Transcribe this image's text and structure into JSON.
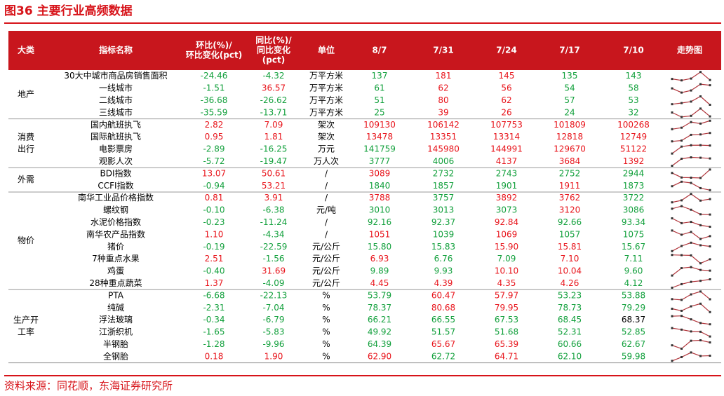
{
  "header": {
    "title": "图36  主要行业高频数据"
  },
  "table": {
    "columns": [
      [
        "大类"
      ],
      [
        "指标名称"
      ],
      [
        "环比(%)/",
        "环比变化(pct)"
      ],
      [
        "同比(%)/",
        "同比变化",
        "(pct)"
      ],
      [
        "单位"
      ],
      [
        "8/7"
      ],
      [
        "7/31"
      ],
      [
        "7/24"
      ],
      [
        "7/17"
      ],
      [
        "7/10"
      ],
      [
        "走势图"
      ]
    ],
    "groups": [
      {
        "label": [
          "地产"
        ],
        "rows": [
          {
            "cells": [
              "30大中城市商品房销售面积",
              "-24.46",
              "-4.32",
              "万平方米",
              "137",
              "181",
              "145",
              "135",
              "143"
            ],
            "colors": [
              "#000",
              "#12a03c",
              "#12a03c",
              "#000",
              "#12a03c",
              "#e8141b",
              "#e8141b",
              "#12a03c",
              "#12a03c"
            ]
          },
          {
            "cells": [
              "一线城市",
              "-1.51",
              "36.57",
              "万平方米",
              "61",
              "62",
              "56",
              "54",
              "58"
            ],
            "colors": [
              "#000",
              "#12a03c",
              "#e8141b",
              "#000",
              "#12a03c",
              "#e8141b",
              "#e8141b",
              "#12a03c",
              "#12a03c"
            ]
          },
          {
            "cells": [
              "二线城市",
              "-36.68",
              "-26.62",
              "万平方米",
              "51",
              "80",
              "62",
              "57",
              "53"
            ],
            "colors": [
              "#000",
              "#12a03c",
              "#12a03c",
              "#000",
              "#12a03c",
              "#e8141b",
              "#e8141b",
              "#12a03c",
              "#12a03c"
            ]
          },
          {
            "cells": [
              "三线城市",
              "-35.59",
              "-13.71",
              "万平方米",
              "25",
              "39",
              "26",
              "24",
              "32"
            ],
            "colors": [
              "#000",
              "#12a03c",
              "#12a03c",
              "#000",
              "#12a03c",
              "#e8141b",
              "#e8141b",
              "#12a03c",
              "#12a03c"
            ]
          }
        ]
      },
      {
        "label": [
          "消费",
          "出行"
        ],
        "rows": [
          {
            "cells": [
              "国内航班执飞",
              "2.82",
              "7.09",
              "架次",
              "109130",
              "106142",
              "107753",
              "101809",
              "100268"
            ],
            "colors": [
              "#000",
              "#e8141b",
              "#e8141b",
              "#000",
              "#e8141b",
              "#e8141b",
              "#e8141b",
              "#e8141b",
              "#e8141b"
            ]
          },
          {
            "cells": [
              "国际航班执飞",
              "0.95",
              "1.81",
              "架次",
              "13478",
              "13351",
              "13314",
              "12818",
              "12749"
            ],
            "colors": [
              "#000",
              "#e8141b",
              "#e8141b",
              "#000",
              "#e8141b",
              "#e8141b",
              "#e8141b",
              "#e8141b",
              "#e8141b"
            ]
          },
          {
            "cells": [
              "电影票房",
              "-2.89",
              "-16.25",
              "万元",
              "141759",
              "145980",
              "144991",
              "129670",
              "51122"
            ],
            "colors": [
              "#000",
              "#12a03c",
              "#12a03c",
              "#000",
              "#12a03c",
              "#e8141b",
              "#e8141b",
              "#e8141b",
              "#e8141b"
            ]
          },
          {
            "cells": [
              "观影人次",
              "-5.72",
              "-19.47",
              "万人次",
              "3777",
              "4006",
              "4137",
              "3684",
              "1392"
            ],
            "colors": [
              "#000",
              "#12a03c",
              "#12a03c",
              "#000",
              "#12a03c",
              "#12a03c",
              "#e8141b",
              "#e8141b",
              "#e8141b"
            ]
          }
        ]
      },
      {
        "label": [
          "外需"
        ],
        "rows": [
          {
            "cells": [
              "BDI指数",
              "13.07",
              "50.61",
              "/",
              "3089",
              "2732",
              "2743",
              "2752",
              "2944"
            ],
            "colors": [
              "#000",
              "#e8141b",
              "#e8141b",
              "#000",
              "#e8141b",
              "#12a03c",
              "#12a03c",
              "#12a03c",
              "#12a03c"
            ]
          },
          {
            "cells": [
              "CCFI指数",
              "-0.94",
              "53.21",
              "/",
              "1840",
              "1857",
              "1901",
              "1911",
              "1873"
            ],
            "colors": [
              "#000",
              "#12a03c",
              "#e8141b",
              "#000",
              "#12a03c",
              "#12a03c",
              "#12a03c",
              "#e8141b",
              "#12a03c"
            ]
          }
        ]
      },
      {
        "label": [
          "物价"
        ],
        "rows": [
          {
            "cells": [
              "南华工业品价格指数",
              "0.81",
              "3.91",
              "/",
              "3788",
              "3757",
              "3892",
              "3762",
              "3722"
            ],
            "colors": [
              "#000",
              "#e8141b",
              "#e8141b",
              "#000",
              "#e8141b",
              "#12a03c",
              "#e8141b",
              "#e8141b",
              "#12a03c"
            ]
          },
          {
            "cells": [
              "螺纹钢",
              "-0.10",
              "-6.38",
              "元/吨",
              "3010",
              "3013",
              "3073",
              "3120",
              "3086"
            ],
            "colors": [
              "#000",
              "#12a03c",
              "#12a03c",
              "#000",
              "#12a03c",
              "#12a03c",
              "#12a03c",
              "#e8141b",
              "#12a03c"
            ]
          },
          {
            "cells": [
              "水泥价格指数",
              "-0.23",
              "-11.24",
              "/",
              "92.16",
              "92.37",
              "92.84",
              "92.66",
              "93.34"
            ],
            "colors": [
              "#000",
              "#12a03c",
              "#12a03c",
              "#000",
              "#12a03c",
              "#12a03c",
              "#e8141b",
              "#12a03c",
              "#12a03c"
            ]
          },
          {
            "cells": [
              "南华农产品指数",
              "1.10",
              "-4.34",
              "/",
              "1051",
              "1039",
              "1069",
              "1057",
              "1075"
            ],
            "colors": [
              "#000",
              "#e8141b",
              "#12a03c",
              "#000",
              "#e8141b",
              "#12a03c",
              "#e8141b",
              "#12a03c",
              "#12a03c"
            ]
          },
          {
            "cells": [
              "猪价",
              "-0.19",
              "-22.59",
              "元/公斤",
              "15.80",
              "15.83",
              "15.90",
              "15.81",
              "15.67"
            ],
            "colors": [
              "#000",
              "#12a03c",
              "#12a03c",
              "#000",
              "#12a03c",
              "#12a03c",
              "#e8141b",
              "#e8141b",
              "#12a03c"
            ]
          },
          {
            "cells": [
              "7种重点水果",
              "2.51",
              "-1.56",
              "元/公斤",
              "6.93",
              "6.76",
              "7.09",
              "7.10",
              "7.11"
            ],
            "colors": [
              "#000",
              "#e8141b",
              "#12a03c",
              "#000",
              "#e8141b",
              "#12a03c",
              "#12a03c",
              "#e8141b",
              "#12a03c"
            ]
          },
          {
            "cells": [
              "鸡蛋",
              "-0.40",
              "31.69",
              "元/公斤",
              "9.89",
              "9.93",
              "10.10",
              "10.04",
              "9.60"
            ],
            "colors": [
              "#000",
              "#12a03c",
              "#e8141b",
              "#000",
              "#12a03c",
              "#12a03c",
              "#e8141b",
              "#e8141b",
              "#12a03c"
            ]
          },
          {
            "cells": [
              "28种重点蔬菜",
              "1.37",
              "-4.09",
              "元/公斤",
              "4.45",
              "4.39",
              "4.35",
              "4.26",
              "4.12"
            ],
            "colors": [
              "#000",
              "#e8141b",
              "#12a03c",
              "#000",
              "#e8141b",
              "#e8141b",
              "#e8141b",
              "#e8141b",
              "#12a03c"
            ]
          }
        ]
      },
      {
        "label": [
          "生产开",
          "工率"
        ],
        "rows": [
          {
            "cells": [
              "PTA",
              "-6.68",
              "-22.13",
              "%",
              "53.79",
              "60.47",
              "57.97",
              "53.23",
              "53.88"
            ],
            "colors": [
              "#000",
              "#12a03c",
              "#12a03c",
              "#000",
              "#12a03c",
              "#e8141b",
              "#e8141b",
              "#12a03c",
              "#12a03c"
            ]
          },
          {
            "cells": [
              "纯碱",
              "-2.31",
              "-7.04",
              "%",
              "78.37",
              "80.68",
              "79.95",
              "78.73",
              "79.29"
            ],
            "colors": [
              "#000",
              "#12a03c",
              "#12a03c",
              "#000",
              "#12a03c",
              "#e8141b",
              "#e8141b",
              "#12a03c",
              "#12a03c"
            ]
          },
          {
            "cells": [
              "浮法玻璃",
              "-0.34",
              "-6.79",
              "%",
              "66.21",
              "66.55",
              "67.53",
              "68.45",
              "68.37"
            ],
            "colors": [
              "#000",
              "#12a03c",
              "#12a03c",
              "#000",
              "#12a03c",
              "#12a03c",
              "#12a03c",
              "#12a03c",
              "#000"
            ]
          },
          {
            "cells": [
              "江浙织机",
              "-1.65",
              "-5.83",
              "%",
              "49.92",
              "51.57",
              "51.68",
              "52.31",
              "52.85"
            ],
            "colors": [
              "#000",
              "#12a03c",
              "#12a03c",
              "#000",
              "#12a03c",
              "#12a03c",
              "#12a03c",
              "#12a03c",
              "#12a03c"
            ]
          },
          {
            "cells": [
              "半钢胎",
              "-1.28",
              "-9.96",
              "%",
              "64.39",
              "65.67",
              "65.39",
              "60.66",
              "62.67"
            ],
            "colors": [
              "#000",
              "#12a03c",
              "#12a03c",
              "#000",
              "#12a03c",
              "#e8141b",
              "#e8141b",
              "#12a03c",
              "#12a03c"
            ]
          },
          {
            "cells": [
              "全钢胎",
              "0.18",
              "1.90",
              "%",
              "62.90",
              "62.72",
              "64.71",
              "62.10",
              "59.98"
            ],
            "colors": [
              "#000",
              "#e8141b",
              "#e8141b",
              "#000",
              "#e8141b",
              "#12a03c",
              "#e8141b",
              "#12a03c",
              "#12a03c"
            ]
          }
        ]
      }
    ]
  },
  "footer": {
    "source": "资料来源：同花顺，东海证券研究所"
  }
}
